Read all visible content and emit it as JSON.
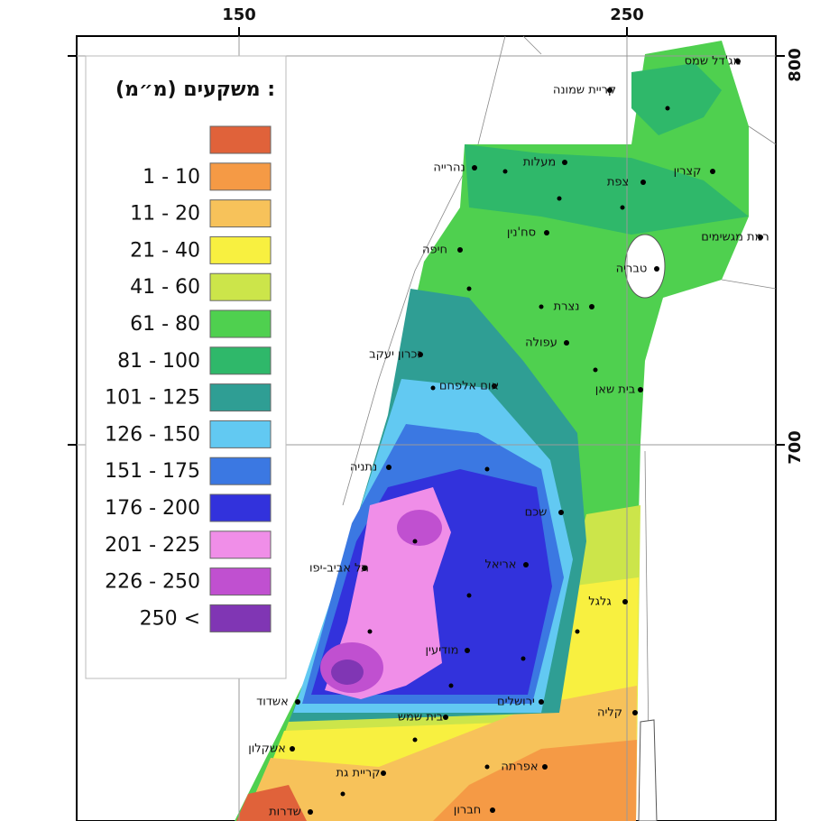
{
  "axes": {
    "x_ticks": [
      150,
      250
    ],
    "y_ticks": [
      800,
      700
    ]
  },
  "legend": {
    "title": "משקעים (מ״מ) :",
    "items": [
      {
        "color": "#e0623a"
      },
      {
        "label": "1 - 10",
        "color": "#f59a45"
      },
      {
        "label": "11 - 20",
        "color": "#f7c25a"
      },
      {
        "label": "21 - 40",
        "color": "#f8f040"
      },
      {
        "label": "41 - 60",
        "color": "#cce54a"
      },
      {
        "label": "61 - 80",
        "color": "#4fd04f"
      },
      {
        "label": "81 - 100",
        "color": "#2fb86a"
      },
      {
        "label": "101 - 125",
        "color": "#2f9e94"
      },
      {
        "label": "126 - 150",
        "color": "#62c9f2"
      },
      {
        "label": "151 - 175",
        "color": "#3b78e2"
      },
      {
        "label": "176 - 200",
        "color": "#3232dc"
      },
      {
        "label": "201 - 225",
        "color": "#f08ee8"
      },
      {
        "label": "226 - 250",
        "color": "#c050d0"
      },
      {
        "label": "250 <",
        "color": "#8036b4"
      }
    ]
  },
  "places": [
    "מג'דל שמס",
    "קריית שמונה",
    "נהרייה",
    "מעלות",
    "צפת",
    "קצרין",
    "סח'נין",
    "רמת מגשימים",
    "חיפה",
    "טבריה",
    "נצרת",
    "עפולה",
    "זכרון יעקב",
    "אום אלפחם",
    "בית שאן",
    "נתניה",
    "שכם",
    "אריאל",
    "תל אביב-יפו",
    "גלגל",
    "מודיעין",
    "אשדוד",
    "ירושלים",
    "בית שמש",
    "קליה",
    "אשקלון",
    "קריית גת",
    "אפרתה",
    "שדרות",
    "חברון"
  ]
}
